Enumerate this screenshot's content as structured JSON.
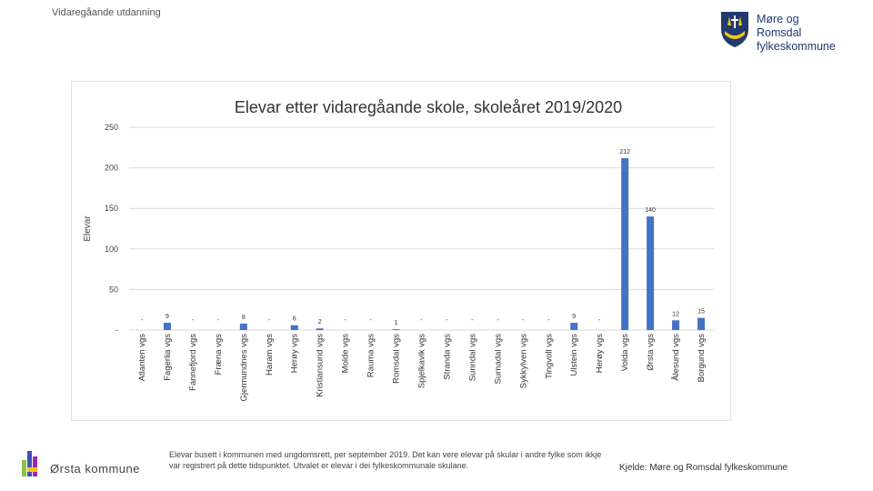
{
  "header": {
    "label": "Vidaregåande utdanning"
  },
  "logo": {
    "line1": "Møre og Romsdal",
    "line2": "fylkeskommune"
  },
  "footer": {
    "municipality": "Ørsta kommune",
    "note": "Elevar busett i kommunen med ungdomsrett, per september 2019. Det kan vere elevar på skular i andre fylke som ikkje var registrert på dette tidspunktet. Utvalet er elevar i dei fylkeskommunale skulane.",
    "source": "Kjelde: Møre og Romsdal fylkeskommune"
  },
  "colors": {
    "bar": "#4472c4",
    "grid": "#d9d9d9",
    "logo_blue": "#1f3a6e",
    "logo_gold": "#f0c419"
  },
  "chart_data": {
    "type": "bar",
    "title": "Elevar etter vidaregåande skole, skoleåret 2019/2020",
    "ylabel": "Elevar",
    "xlabel": "",
    "ylim": [
      0,
      250
    ],
    "yticks": [
      0,
      50,
      100,
      150,
      200,
      250
    ],
    "ytick_labels": [
      "-",
      "50",
      "100",
      "150",
      "200",
      "250"
    ],
    "grid": true,
    "categories": [
      "Atlanten vgs",
      "Fagerlia vgs",
      "Fannefjord vgs",
      "Fræna vgs",
      "Gjermundnes vgs",
      "Haram vgs",
      "Herøy vgs",
      "Kristiansund vgs",
      "Molde vgs",
      "Rauma vgs",
      "Romsdal vgs",
      "Spjelkavik vgs",
      "Stranda vgs",
      "Sunndal vgs",
      "Surnadal vgs",
      "Sykkylven vgs",
      "Tingvoll vgs",
      "Ulstein vgs",
      "Herøy vgs",
      "Volda vgs",
      "Ørsta vgs",
      "Ålesund vgs",
      "Borgund vgs"
    ],
    "values": [
      0,
      9,
      0,
      0,
      8,
      0,
      6,
      2,
      0,
      0,
      1,
      0,
      0,
      0,
      0,
      0,
      0,
      9,
      0,
      212,
      140,
      12,
      15
    ],
    "data_labels": [
      "-",
      "9",
      "-",
      "-",
      "8",
      "-",
      "6",
      "2",
      "-",
      "-",
      "1",
      "-",
      "-",
      "-",
      "-",
      "-",
      "-",
      "9",
      "-",
      "212",
      "140",
      "12",
      "15"
    ]
  }
}
